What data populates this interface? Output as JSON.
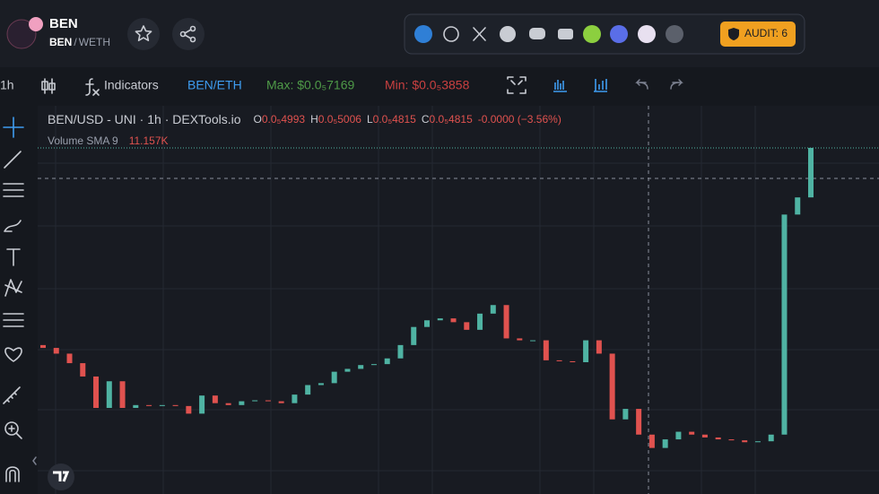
{
  "header": {
    "token": "BEN",
    "pair_base": "BEN",
    "pair_sep": "/",
    "pair_quote": "WETH",
    "audit": "AUDIT: 6"
  },
  "toolbar": {
    "interval": "1h",
    "indicators": "Indicators",
    "pair": "BEN/ETH",
    "max": "Max: $0.0₅7169",
    "min": "Min: $0.0₅3858"
  },
  "legend": {
    "title": "BEN/USD - UNI · 1h · DEXTools.io",
    "o_label": "O",
    "o": "0.0₅4993",
    "h_label": "H",
    "h": "0.0₅5006",
    "l_label": "L",
    "l": "0.0₅4815",
    "c_label": "C",
    "c": "0.0₅4815",
    "change": "-0.0000 (−3.56%)",
    "volume_label": "Volume SMA 9",
    "volume": "11.157K"
  },
  "chart_data": {
    "type": "candlestick",
    "up_color": "#4fb3a3",
    "down_color": "#e0524f",
    "ylim": [
      3.3e-06,
      7.7e-06
    ],
    "open": [
      5.08e-06,
      5.05e-06,
      4.99e-06,
      4.89e-06,
      4.75e-06,
      4.42e-06,
      4.7e-06,
      4.42e-06,
      4.45e-06,
      4.44e-06,
      4.45e-06,
      4.44e-06,
      4.36e-06,
      4.55e-06,
      4.47e-06,
      4.45e-06,
      4.49e-06,
      4.5e-06,
      4.49e-06,
      4.47e-06,
      4.56e-06,
      4.66e-06,
      4.68e-06,
      4.8e-06,
      4.83e-06,
      4.87e-06,
      4.88e-06,
      4.94e-06,
      5.08e-06,
      5.27e-06,
      5.34e-06,
      5.36e-06,
      5.32e-06,
      5.24e-06,
      5.41e-06,
      5.5e-06,
      5.15e-06,
      5.13e-06,
      5.13e-06,
      4.92e-06,
      4.91e-06,
      4.9e-06,
      5.13e-06,
      4.99e-06,
      4.3e-06,
      4.41e-06,
      4.14e-06,
      4e-06,
      4.09e-06,
      4.17e-06,
      4.14e-06,
      4.11e-06,
      4.09e-06,
      4.08e-06,
      4.06e-06,
      4.07e-06,
      4.14e-06,
      6.45e-06,
      6.63e-06
    ],
    "close": [
      5.05e-06,
      4.99e-06,
      4.89e-06,
      4.75e-06,
      4.42e-06,
      4.7e-06,
      4.42e-06,
      4.45e-06,
      4.44e-06,
      4.45e-06,
      4.44e-06,
      4.36e-06,
      4.55e-06,
      4.47e-06,
      4.45e-06,
      4.49e-06,
      4.5e-06,
      4.49e-06,
      4.47e-06,
      4.56e-06,
      4.66e-06,
      4.68e-06,
      4.8e-06,
      4.83e-06,
      4.87e-06,
      4.88e-06,
      4.94e-06,
      5.08e-06,
      5.27e-06,
      5.34e-06,
      5.36e-06,
      5.32e-06,
      5.24e-06,
      5.41e-06,
      5.5e-06,
      5.15e-06,
      5.13e-06,
      5.13e-06,
      4.92e-06,
      4.91e-06,
      4.9e-06,
      5.13e-06,
      4.99e-06,
      4.3e-06,
      4.41e-06,
      4.14e-06,
      4e-06,
      4.09e-06,
      4.17e-06,
      4.14e-06,
      4.11e-06,
      4.09e-06,
      4.08e-06,
      4.06e-06,
      4.07e-06,
      4.14e-06,
      6.45e-06,
      6.63e-06,
      7.15e-06
    ]
  }
}
